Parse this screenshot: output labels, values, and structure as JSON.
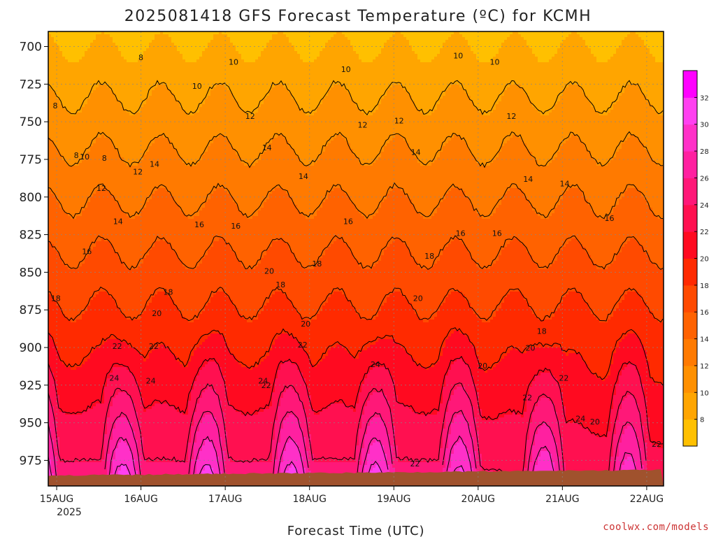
{
  "chart_data": {
    "type": "heatmap",
    "title": "2025081418 GFS Forecast Temperature (ºC) for KCMH",
    "xlabel": "Forecast Time (UTC)",
    "ylabel": "",
    "x_tick_labels": [
      "15AUG",
      "16AUG",
      "17AUG",
      "18AUG",
      "19AUG",
      "20AUG",
      "21AUG",
      "22AUG"
    ],
    "x_tick_year": "2025",
    "y_axis_pressure_hpa": [
      700,
      725,
      750,
      775,
      800,
      825,
      850,
      875,
      900,
      925,
      950,
      975
    ],
    "y_tick_labels": [
      "700",
      "725",
      "750",
      "775",
      "800",
      "825",
      "850",
      "875",
      "900",
      "925",
      "950",
      "975"
    ],
    "y_range_hpa": [
      690,
      992
    ],
    "y_scale": "linear, inverted (pressure decreasing upward)",
    "x_range_days": [
      14.9,
      22.2
    ],
    "grid": "dotted",
    "colorbar": {
      "levels": [
        8,
        10,
        12,
        14,
        16,
        18,
        20,
        22,
        24,
        26,
        28,
        30,
        32
      ],
      "tick_labels": [
        "8",
        "10",
        "12",
        "14",
        "16",
        "18",
        "20",
        "22",
        "24",
        "26",
        "28",
        "30",
        "32"
      ],
      "colors": [
        "#FFC000",
        "#FFA500",
        "#FF9000",
        "#FF7A00",
        "#FF6200",
        "#FF4A00",
        "#FF2A00",
        "#FF0A20",
        "#FF1050",
        "#FF1878",
        "#FF20A0",
        "#FF30C8",
        "#FF40F0",
        "#FF00FF"
      ],
      "placement": "right"
    },
    "contour_labels": [
      {
        "value": "8",
        "time": "15AUG",
        "p": 741
      },
      {
        "value": "8",
        "time": "15AUG",
        "p": 774
      },
      {
        "value": "8",
        "time": "15AUG",
        "p": 776
      },
      {
        "value": "8",
        "time": "16AUG",
        "p": 709
      },
      {
        "value": "10",
        "time": "15AUG",
        "p": 775
      },
      {
        "value": "10",
        "time": "16AUG",
        "p": 728
      },
      {
        "value": "10",
        "time": "17AUG",
        "p": 712
      },
      {
        "value": "10",
        "time": "18AUG",
        "p": 717
      },
      {
        "value": "10",
        "time": "19AUG",
        "p": 708
      },
      {
        "value": "10",
        "time": "20AUG",
        "p": 712
      },
      {
        "value": "12",
        "time": "15AUG",
        "p": 796
      },
      {
        "value": "12",
        "time": "16AUG",
        "p": 785
      },
      {
        "value": "12",
        "time": "17AUG",
        "p": 748
      },
      {
        "value": "12",
        "time": "18AUG",
        "p": 754
      },
      {
        "value": "12",
        "time": "19AUG",
        "p": 751
      },
      {
        "value": "12",
        "time": "20AUG",
        "p": 748
      },
      {
        "value": "14",
        "time": "15AUG",
        "p": 818
      },
      {
        "value": "14",
        "time": "16AUG",
        "p": 780
      },
      {
        "value": "14",
        "time": "17AUG",
        "p": 769
      },
      {
        "value": "14",
        "time": "18AUG",
        "p": 788
      },
      {
        "value": "14",
        "time": "19AUG",
        "p": 772
      },
      {
        "value": "14",
        "time": "20AUG",
        "p": 790
      },
      {
        "value": "14",
        "time": "21AUG",
        "p": 793
      },
      {
        "value": "16",
        "time": "15AUG",
        "p": 838
      },
      {
        "value": "16",
        "time": "16AUG",
        "p": 820
      },
      {
        "value": "16",
        "time": "17AUG",
        "p": 821
      },
      {
        "value": "16",
        "time": "18AUG",
        "p": 818
      },
      {
        "value": "16",
        "time": "19AUG",
        "p": 826
      },
      {
        "value": "16",
        "time": "20AUG",
        "p": 826
      },
      {
        "value": "16",
        "time": "21AUG",
        "p": 816
      },
      {
        "value": "18",
        "time": "15AUG",
        "p": 869
      },
      {
        "value": "18",
        "time": "16AUG",
        "p": 865
      },
      {
        "value": "18",
        "time": "17AUG",
        "p": 860
      },
      {
        "value": "18",
        "time": "18AUG",
        "p": 846
      },
      {
        "value": "18",
        "time": "19AUG",
        "p": 841
      },
      {
        "value": "18",
        "time": "20AUG",
        "p": 891
      },
      {
        "value": "20",
        "time": "16AUG",
        "p": 879
      },
      {
        "value": "20",
        "time": "17AUG",
        "p": 851
      },
      {
        "value": "20",
        "time": "18AUG",
        "p": 886
      },
      {
        "value": "20",
        "time": "19AUG",
        "p": 869
      },
      {
        "value": "20",
        "time": "20AUG",
        "p": 902
      },
      {
        "value": "20",
        "time": "20AUG",
        "p": 914
      },
      {
        "value": "20",
        "time": "21AUG",
        "p": 951
      },
      {
        "value": "22",
        "time": "15AUG",
        "p": 901
      },
      {
        "value": "22",
        "time": "16AUG",
        "p": 901
      },
      {
        "value": "22",
        "time": "17AUG",
        "p": 927
      },
      {
        "value": "22",
        "time": "18AUG",
        "p": 900
      },
      {
        "value": "22",
        "time": "19AUG",
        "p": 979
      },
      {
        "value": "22",
        "time": "20AUG",
        "p": 935
      },
      {
        "value": "22",
        "time": "21AUG",
        "p": 922
      },
      {
        "value": "22",
        "time": "22AUG",
        "p": 966
      },
      {
        "value": "24",
        "time": "15AUG",
        "p": 922
      },
      {
        "value": "24",
        "time": "16AUG",
        "p": 924
      },
      {
        "value": "24",
        "time": "17AUG",
        "p": 924
      },
      {
        "value": "24",
        "time": "18AUG",
        "p": 913
      },
      {
        "value": "24",
        "time": "21AUG",
        "p": 949
      }
    ],
    "terrain_color": "#A0522D"
  },
  "credit": "coolwx.com/models",
  "colors": {
    "frame": "#000000",
    "contour": "#000000",
    "terrain": "#A0522D",
    "credit": "#cc3333"
  }
}
